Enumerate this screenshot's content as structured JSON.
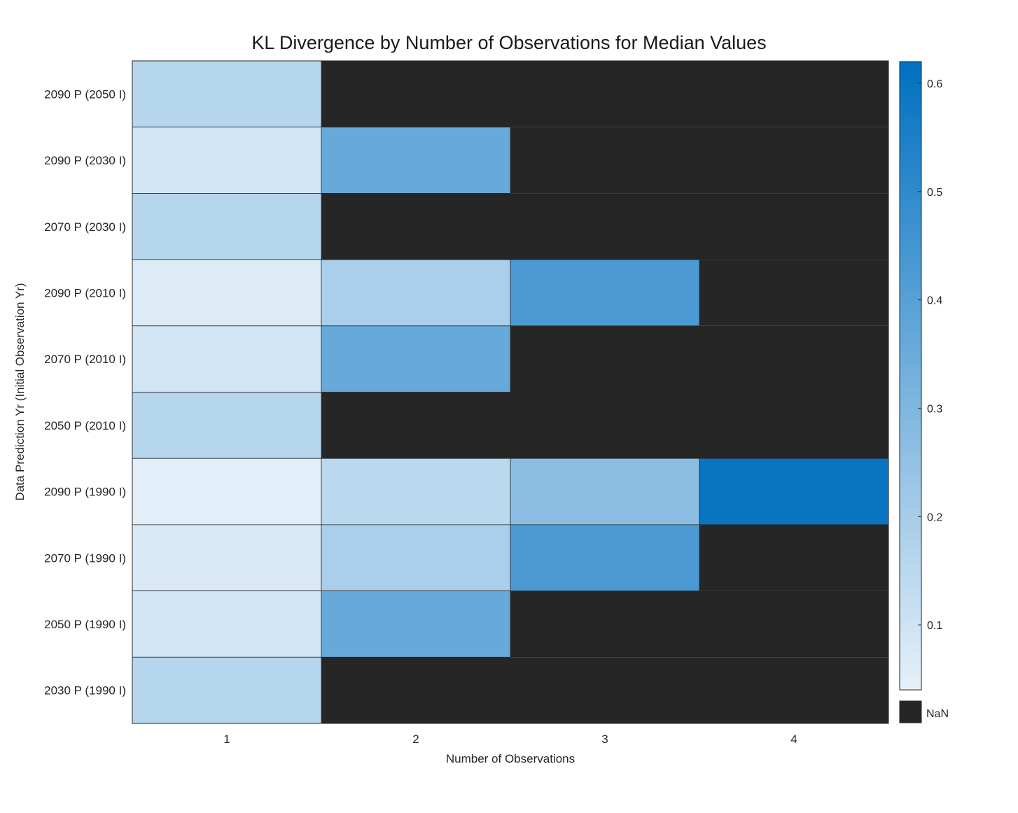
{
  "chart_data": {
    "type": "heatmap",
    "title": "KL Divergence by Number of Observations for Median Values",
    "xlabel": "Number of Observations",
    "ylabel": "Data Prediction Yr (Initial Observation Yr)",
    "x_categories": [
      "1",
      "2",
      "3",
      "4"
    ],
    "y_categories": [
      "2090 P (2050 I)",
      "2090 P (2030 I)",
      "2070 P (2030 I)",
      "2090 P (2010 I)",
      "2070 P (2010 I)",
      "2050 P (2010 I)",
      "2090 P (1990 I)",
      "2070 P (1990 I)",
      "2050 P (1990 I)",
      "2030 P (1990 I)"
    ],
    "values": [
      [
        0.16,
        null,
        null,
        null
      ],
      [
        0.09,
        0.36,
        null,
        null
      ],
      [
        0.16,
        null,
        null,
        null
      ],
      [
        0.06,
        0.19,
        0.43,
        null
      ],
      [
        0.09,
        0.36,
        null,
        null
      ],
      [
        0.16,
        null,
        null,
        null
      ],
      [
        0.05,
        0.15,
        0.27,
        0.6
      ],
      [
        0.07,
        0.19,
        0.43,
        null
      ],
      [
        0.09,
        0.36,
        null,
        null
      ],
      [
        0.16,
        null,
        null,
        null
      ]
    ],
    "colorbar": {
      "min": 0.04,
      "max": 0.62,
      "ticks": [
        "0.1",
        "0.2",
        "0.3",
        "0.4",
        "0.5",
        "0.6"
      ],
      "color_low": "#e6f0f9",
      "color_high": "#0070c0",
      "missing_label": "NaN",
      "missing_color": "#262626"
    },
    "grid": false
  }
}
